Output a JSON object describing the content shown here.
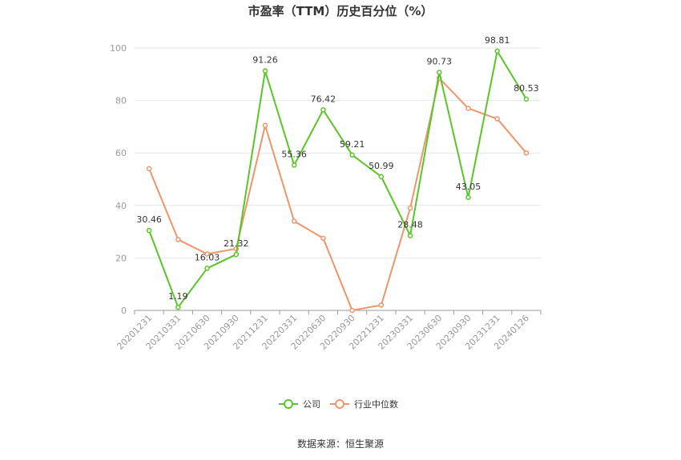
{
  "chart_data": {
    "type": "line",
    "title": "市盈率（TTM）历史百分位（%）",
    "categories": [
      "20201231",
      "20210331",
      "20210630",
      "20210930",
      "20211231",
      "20220331",
      "20220630",
      "20220930",
      "20221231",
      "20230331",
      "20230630",
      "20230930",
      "20231231",
      "20240126"
    ],
    "ylim": [
      0,
      100
    ],
    "yticks": [
      0,
      20,
      40,
      60,
      80,
      100
    ],
    "grid": true,
    "legend_position": "bottom",
    "series": [
      {
        "name": "公司",
        "color": "#5ac528",
        "values": [
          30.46,
          1.19,
          16.03,
          21.32,
          91.26,
          55.36,
          76.42,
          59.21,
          50.99,
          28.48,
          90.73,
          43.05,
          98.81,
          80.53
        ],
        "show_labels": true
      },
      {
        "name": "行业中位数",
        "color": "#f0946a",
        "values": [
          54.0,
          27.0,
          21.5,
          23.5,
          70.5,
          34.0,
          27.5,
          0.0,
          2.0,
          39.0,
          88.5,
          77.0,
          73.0,
          60.0
        ],
        "show_labels": false
      }
    ],
    "source": "数据来源：恒生聚源"
  }
}
